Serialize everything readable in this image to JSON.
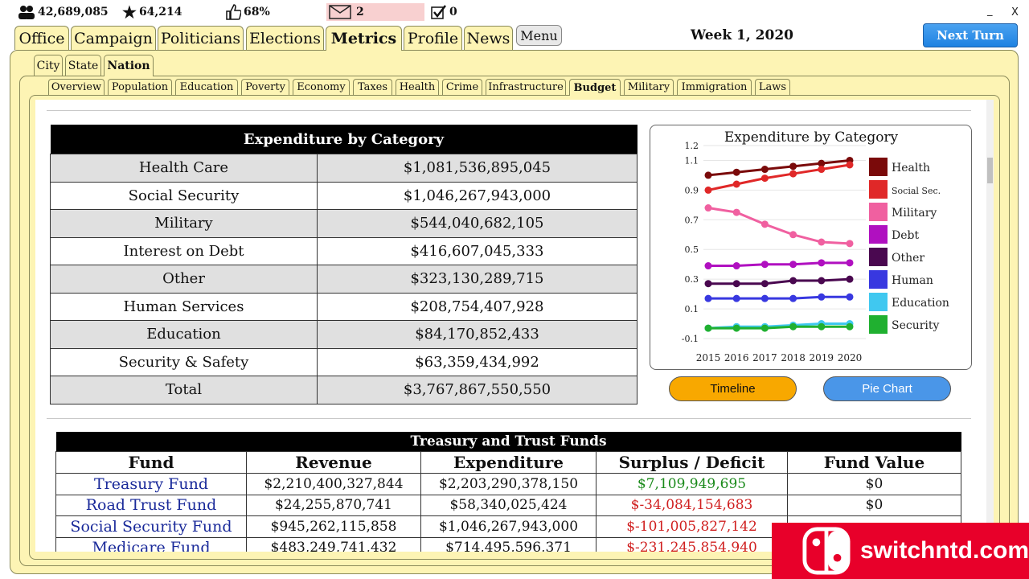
{
  "status": {
    "population": "42,689,085",
    "stars": "64,214",
    "approval": "68%",
    "messages": "2",
    "tasks": "0"
  },
  "window": {
    "minimize": "_",
    "close": "X"
  },
  "main_tabs": [
    "Office",
    "Campaign",
    "Politicians",
    "Elections",
    "Metrics",
    "Profile",
    "News"
  ],
  "menu_label": "Menu",
  "week": "Week 1, 2020",
  "next_turn": "Next Turn",
  "level_tabs": [
    "City",
    "State",
    "Nation"
  ],
  "metric_tabs": [
    "Overview",
    "Population",
    "Education",
    "Poverty",
    "Economy",
    "Taxes",
    "Health",
    "Crime",
    "Infrastructure",
    "Budget",
    "Military",
    "Immigration",
    "Laws"
  ],
  "expenditure": {
    "title": "Expenditure by Category",
    "rows": [
      [
        "Health Care",
        "$1,081,536,895,045"
      ],
      [
        "Social Security",
        "$1,046,267,943,000"
      ],
      [
        "Military",
        "$544,040,682,105"
      ],
      [
        "Interest on Debt",
        "$416,607,045,333"
      ],
      [
        "Other",
        "$323,130,289,715"
      ],
      [
        "Human Services",
        "$208,754,407,928"
      ],
      [
        "Education",
        "$84,170,852,433"
      ],
      [
        "Security & Safety",
        "$63,359,434,992"
      ],
      [
        "Total",
        "$3,767,867,550,550"
      ]
    ]
  },
  "chart_data": {
    "type": "line",
    "title": "Expenditure by Category",
    "x": [
      "2015",
      "2016",
      "2017",
      "2018",
      "2019",
      "2020"
    ],
    "yticks": [
      "1.2",
      "1.1",
      "0.9",
      "0.7",
      "0.5",
      "0.3",
      "0.1",
      "-0.1"
    ],
    "ylim": [
      -0.1,
      1.2
    ],
    "grid": true,
    "legend_position": "right",
    "series": [
      {
        "name": "Health",
        "color": "#7a0a0a",
        "values": [
          1.0,
          1.02,
          1.04,
          1.06,
          1.08,
          1.1
        ]
      },
      {
        "name": "Social Sec.",
        "color": "#e02828",
        "values": [
          0.9,
          0.94,
          0.98,
          1.01,
          1.04,
          1.07
        ]
      },
      {
        "name": "Military",
        "color": "#f060a0",
        "values": [
          0.78,
          0.75,
          0.67,
          0.6,
          0.55,
          0.54
        ]
      },
      {
        "name": "Debt",
        "color": "#b010c0",
        "values": [
          0.39,
          0.39,
          0.4,
          0.4,
          0.41,
          0.41
        ]
      },
      {
        "name": "Other",
        "color": "#4a0850",
        "values": [
          0.27,
          0.27,
          0.27,
          0.29,
          0.29,
          0.3
        ]
      },
      {
        "name": "Human",
        "color": "#3838e0",
        "values": [
          0.17,
          0.17,
          0.17,
          0.17,
          0.18,
          0.18
        ]
      },
      {
        "name": "Education",
        "color": "#40c8f0",
        "values": [
          -0.03,
          -0.02,
          -0.02,
          -0.01,
          0.0,
          0.0
        ]
      },
      {
        "name": "Security",
        "color": "#20b030",
        "values": [
          -0.03,
          -0.03,
          -0.03,
          -0.02,
          -0.02,
          -0.02
        ]
      }
    ]
  },
  "buttons": {
    "timeline": "Timeline",
    "pie_chart": "Pie Chart"
  },
  "treasury": {
    "title": "Treasury and Trust Funds",
    "headers": [
      "Fund",
      "Revenue",
      "Expenditure",
      "Surplus / Deficit",
      "Fund Value"
    ],
    "rows": [
      [
        "Treasury Fund",
        "$2,210,400,327,844",
        "$2,203,290,378,150",
        "$7,109,949,695",
        "$0"
      ],
      [
        "Road Trust Fund",
        "$24,255,870,741",
        "$58,340,025,424",
        "$-34,084,154,683",
        "$0"
      ],
      [
        "Social Security Fund",
        "$945,262,115,858",
        "$1,046,267,943,000",
        "$-101,005,827,142",
        ""
      ],
      [
        "Medicare Fund",
        "$483,249,741,432",
        "$714,495,596,371",
        "$-231,245,854,940",
        ""
      ]
    ]
  },
  "watermark": "switchntd.com",
  "colors": {
    "panel": "#fdf4b4",
    "next_turn": "#1e82e2",
    "timeline": "#f8a800",
    "pie_chart": "#4a96e8"
  }
}
